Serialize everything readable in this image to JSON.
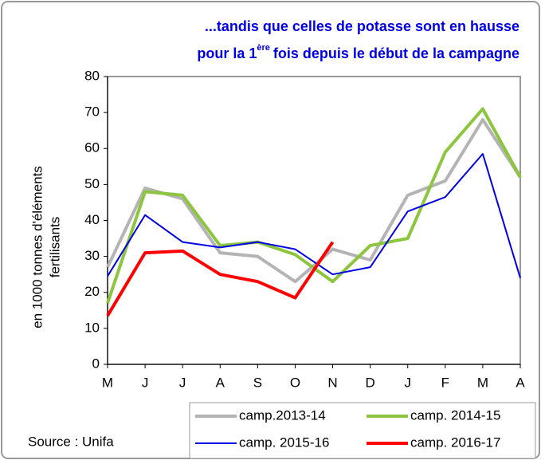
{
  "chart_data": {
    "type": "line",
    "title": {
      "line1": "...tandis que celles de potasse sont en hausse",
      "line2_before": "pour la 1",
      "line2_sup": "ère",
      "line2_after": "fois depuis le début de la campagne"
    },
    "y_label": [
      "en 1000 tonnes d'éléments",
      "fertilisants"
    ],
    "source": "Source : Unifa",
    "categories": [
      "M",
      "J",
      "J",
      "A",
      "S",
      "O",
      "N",
      "D",
      "J",
      "F",
      "M",
      "A"
    ],
    "series": [
      {
        "name": "camp.2013-14",
        "color": "#b4b4b4",
        "width": 4,
        "values": [
          27,
          49,
          46,
          31,
          30,
          23,
          32,
          29,
          47,
          51,
          68,
          52
        ]
      },
      {
        "name": "camp. 2014-15",
        "color": "#8cc63f",
        "width": 4,
        "values": [
          17,
          48,
          47,
          33,
          34,
          30.5,
          23,
          33,
          35,
          59,
          71,
          52
        ]
      },
      {
        "name": "camp. 2015-16",
        "color": "#0000e6",
        "width": 2,
        "values": [
          24.5,
          41.5,
          34,
          32.5,
          34,
          32,
          25,
          27,
          42.5,
          46.5,
          58.5,
          24
        ]
      },
      {
        "name": "camp. 2016-17",
        "color": "#ff0000",
        "width": 4,
        "values": [
          13.5,
          31,
          31.5,
          25,
          23,
          18.5,
          34,
          null,
          null,
          null,
          null,
          null
        ]
      }
    ],
    "ylim": [
      0,
      80
    ],
    "yticks": [
      0,
      10,
      20,
      30,
      40,
      50,
      60,
      70,
      80
    ]
  }
}
